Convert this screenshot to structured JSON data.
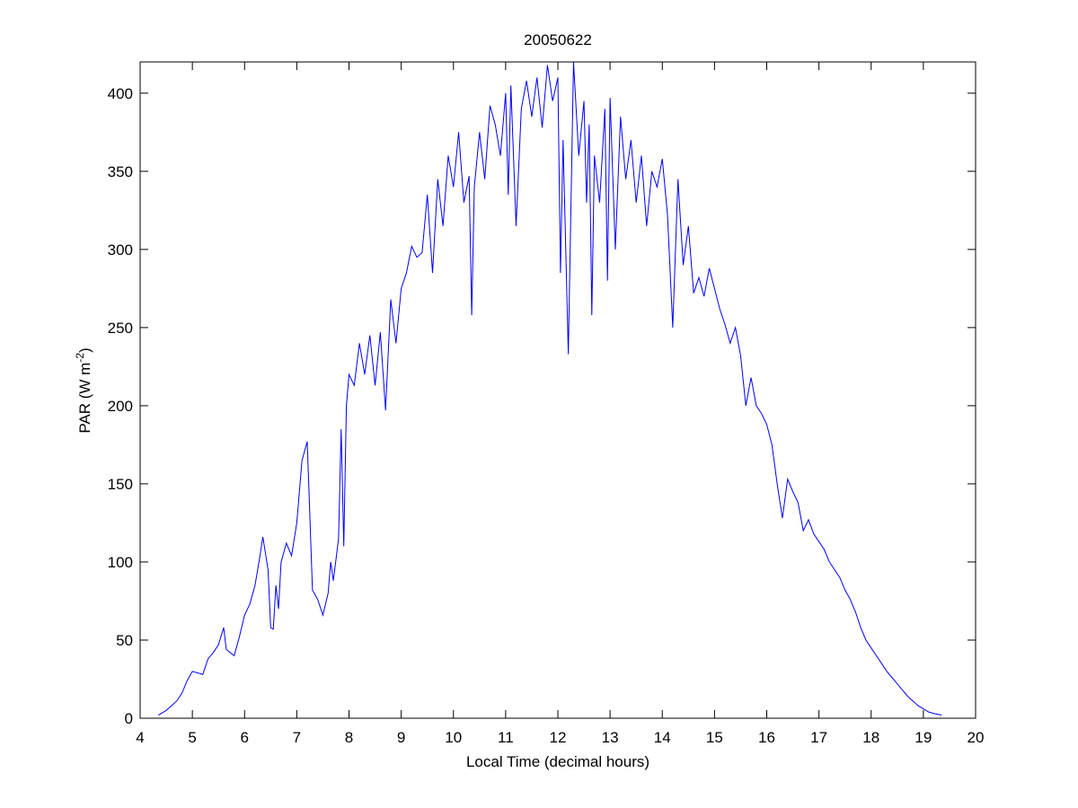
{
  "chart_data": {
    "type": "line",
    "title": "20050622",
    "xlabel": "Local Time (decimal hours)",
    "ylabel": [
      "PAR (W m",
      "-2",
      ")"
    ],
    "color": "#0000ff",
    "xlim": [
      4,
      20
    ],
    "xticks": [
      4,
      5,
      6,
      7,
      8,
      9,
      10,
      11,
      12,
      13,
      14,
      15,
      16,
      17,
      18,
      19,
      20
    ],
    "ylim": [
      0,
      420
    ],
    "yticks": [
      0,
      50,
      100,
      150,
      200,
      250,
      300,
      350,
      400
    ],
    "x": [
      4.35,
      4.5,
      4.6,
      4.7,
      4.8,
      4.9,
      5.0,
      5.1,
      5.2,
      5.3,
      5.4,
      5.5,
      5.6,
      5.65,
      5.8,
      5.9,
      6.0,
      6.1,
      6.2,
      6.3,
      6.35,
      6.45,
      6.5,
      6.55,
      6.6,
      6.65,
      6.7,
      6.8,
      6.9,
      7.0,
      7.1,
      7.2,
      7.25,
      7.3,
      7.4,
      7.5,
      7.6,
      7.65,
      7.7,
      7.8,
      7.85,
      7.9,
      7.95,
      8.0,
      8.1,
      8.2,
      8.3,
      8.4,
      8.5,
      8.6,
      8.7,
      8.8,
      8.9,
      9.0,
      9.1,
      9.2,
      9.3,
      9.4,
      9.5,
      9.6,
      9.7,
      9.8,
      9.9,
      10.0,
      10.1,
      10.2,
      10.3,
      10.35,
      10.4,
      10.5,
      10.6,
      10.7,
      10.8,
      10.9,
      11.0,
      11.05,
      11.1,
      11.2,
      11.3,
      11.4,
      11.5,
      11.6,
      11.7,
      11.8,
      11.9,
      12.0,
      12.05,
      12.1,
      12.2,
      12.3,
      12.4,
      12.5,
      12.55,
      12.6,
      12.65,
      12.7,
      12.8,
      12.9,
      12.95,
      13.0,
      13.1,
      13.2,
      13.3,
      13.4,
      13.5,
      13.6,
      13.7,
      13.8,
      13.9,
      14.0,
      14.1,
      14.2,
      14.3,
      14.4,
      14.5,
      14.6,
      14.7,
      14.8,
      14.9,
      15.0,
      15.1,
      15.2,
      15.3,
      15.4,
      15.5,
      15.6,
      15.7,
      15.8,
      15.9,
      16.0,
      16.1,
      16.2,
      16.3,
      16.4,
      16.5,
      16.6,
      16.7,
      16.8,
      16.9,
      17.0,
      17.1,
      17.2,
      17.3,
      17.4,
      17.5,
      17.6,
      17.7,
      17.8,
      17.9,
      18.0,
      18.1,
      18.2,
      18.3,
      18.4,
      18.5,
      18.6,
      18.7,
      18.8,
      18.9,
      19.0,
      19.1,
      19.2,
      19.35
    ],
    "values": [
      2,
      5,
      8,
      11,
      16,
      24,
      30,
      29,
      28,
      38,
      42,
      47,
      58,
      44,
      40,
      52,
      66,
      73,
      85,
      105,
      116,
      95,
      58,
      57,
      85,
      70,
      100,
      112,
      104,
      125,
      165,
      177,
      130,
      82,
      76,
      66,
      80,
      100,
      88,
      115,
      185,
      110,
      200,
      220,
      213,
      240,
      220,
      245,
      213,
      247,
      197,
      268,
      240,
      275,
      285,
      302,
      295,
      298,
      335,
      285,
      345,
      315,
      360,
      340,
      375,
      330,
      347,
      258,
      340,
      375,
      345,
      392,
      380,
      360,
      400,
      335,
      405,
      315,
      390,
      408,
      385,
      410,
      378,
      418,
      395,
      410,
      285,
      370,
      233,
      420,
      360,
      395,
      330,
      380,
      258,
      360,
      330,
      390,
      280,
      397,
      300,
      385,
      345,
      370,
      330,
      360,
      315,
      350,
      340,
      358,
      322,
      250,
      345,
      290,
      315,
      272,
      282,
      270,
      288,
      275,
      262,
      252,
      240,
      250,
      232,
      200,
      218,
      200,
      195,
      188,
      175,
      150,
      128,
      153,
      145,
      138,
      120,
      127,
      118,
      113,
      108,
      100,
      95,
      90,
      82,
      76,
      68,
      58,
      50,
      45,
      40,
      35,
      30,
      26,
      22,
      18,
      14,
      11,
      8,
      6,
      4,
      3,
      2
    ]
  }
}
